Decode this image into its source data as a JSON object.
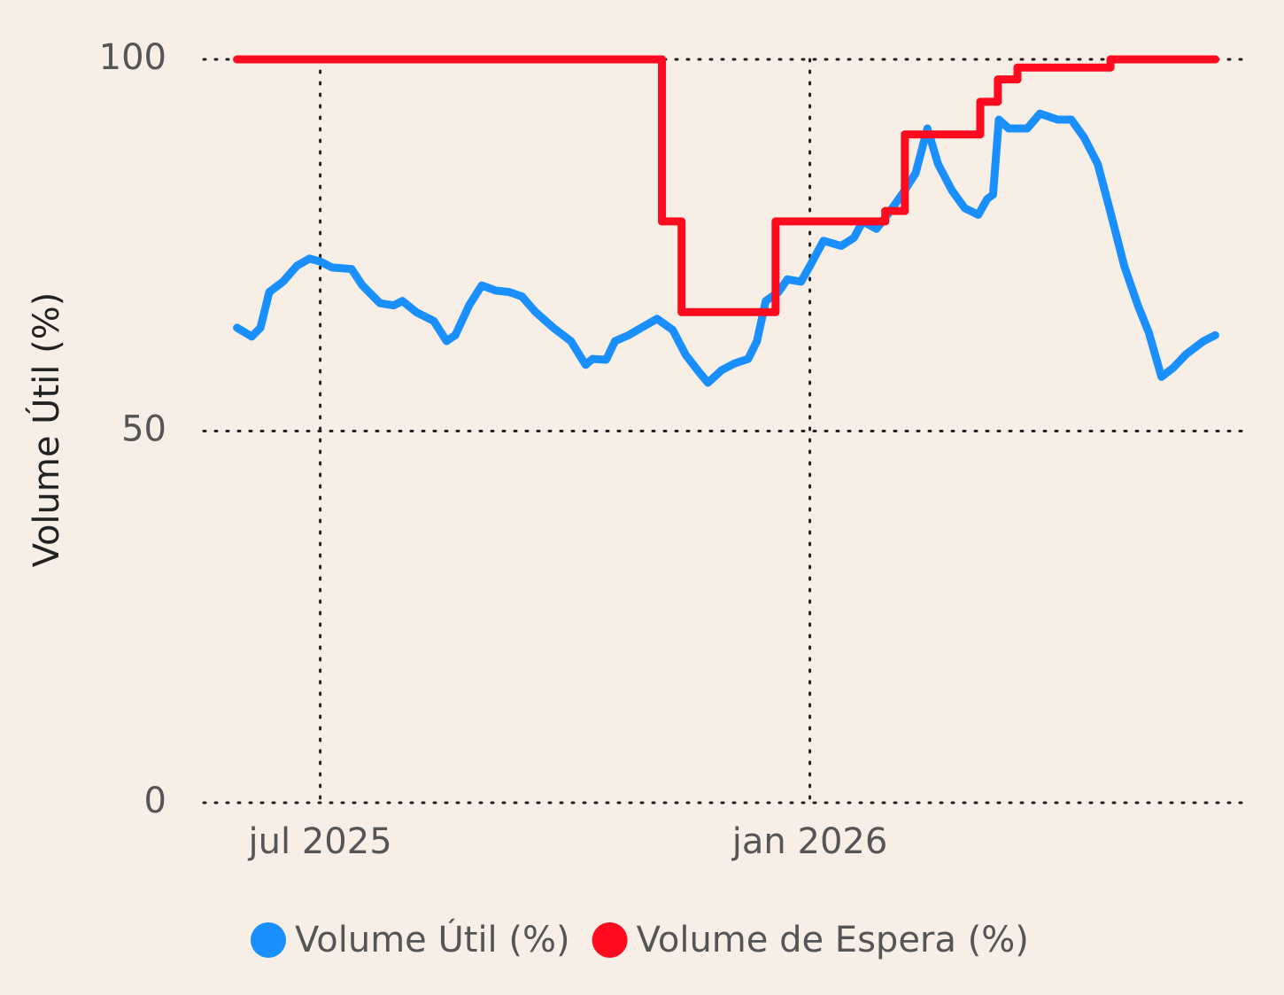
{
  "chart_data": {
    "type": "line",
    "ylabel": "Volume Útil (%)",
    "ylim": [
      0,
      100
    ],
    "yticks": [
      0,
      50,
      100
    ],
    "xlim": [
      2025.381,
      2026.448
    ],
    "xticks": [
      {
        "value": 2025.5,
        "label": "jul 2025"
      },
      {
        "value": 2026.0,
        "label": "jan 2026"
      }
    ],
    "grid": true,
    "legend": "bottom",
    "series": [
      {
        "name": "Volume Útil (%)",
        "color": "#1a8fff",
        "step": false,
        "x": [
          2025.415,
          2025.43,
          2025.439,
          2025.448,
          2025.462,
          2025.476,
          2025.489,
          2025.5,
          2025.512,
          2025.532,
          2025.543,
          2025.561,
          2025.575,
          2025.584,
          2025.598,
          2025.616,
          2025.629,
          2025.638,
          2025.652,
          2025.665,
          2025.679,
          2025.693,
          2025.706,
          2025.72,
          2025.738,
          2025.756,
          2025.771,
          2025.778,
          2025.792,
          2025.801,
          2025.815,
          2025.828,
          2025.844,
          2025.86,
          2025.873,
          2025.887,
          2025.896,
          2025.91,
          2025.923,
          2025.937,
          2025.946,
          2025.955,
          2025.968,
          2025.977,
          2025.991,
          2026.0,
          2026.014,
          2026.032,
          2026.045,
          2026.054,
          2026.068,
          2026.081,
          2026.095,
          2026.108,
          2026.12,
          2026.131,
          2026.145,
          2026.158,
          2026.172,
          2026.181,
          2026.187,
          2026.193,
          2026.203,
          2026.222,
          2026.235,
          2026.253,
          2026.267,
          2026.28,
          2026.294,
          2026.307,
          2026.321,
          2026.335,
          2026.346,
          2026.359,
          2026.371,
          2026.384,
          2026.402,
          2026.414
        ],
        "values": [
          63.9,
          62.7,
          63.9,
          68.7,
          70.1,
          72.2,
          73.2,
          72.8,
          72.0,
          71.8,
          69.6,
          67.2,
          66.9,
          67.5,
          66.0,
          64.8,
          62.1,
          62.9,
          66.9,
          69.6,
          68.9,
          68.7,
          68.1,
          66.0,
          63.9,
          62.1,
          58.9,
          59.7,
          59.6,
          62.1,
          62.9,
          63.9,
          65.1,
          63.6,
          60.3,
          57.9,
          56.5,
          58.2,
          59.1,
          59.7,
          62.1,
          67.5,
          68.7,
          70.4,
          70.1,
          72.2,
          75.6,
          74.9,
          76.0,
          78.2,
          77.2,
          79.4,
          82.0,
          84.7,
          90.7,
          85.9,
          82.4,
          80.0,
          79.1,
          81.2,
          81.8,
          91.9,
          90.7,
          90.7,
          92.7,
          91.9,
          91.9,
          89.5,
          85.9,
          79.4,
          72.2,
          66.9,
          63.3,
          57.3,
          58.5,
          60.3,
          62.1,
          62.9
        ]
      },
      {
        "name": "Volume de Espera (%)",
        "color": "#ff0a1e",
        "step": true,
        "x": [
          2025.415,
          2025.849,
          2025.869,
          2025.965,
          2026.077,
          2026.097,
          2026.174,
          2026.192,
          2026.212,
          2026.307,
          2026.414
        ],
        "values": [
          100,
          78.2,
          66.0,
          78.2,
          79.6,
          89.9,
          94.3,
          97.3,
          98.9,
          100,
          100
        ]
      }
    ]
  }
}
